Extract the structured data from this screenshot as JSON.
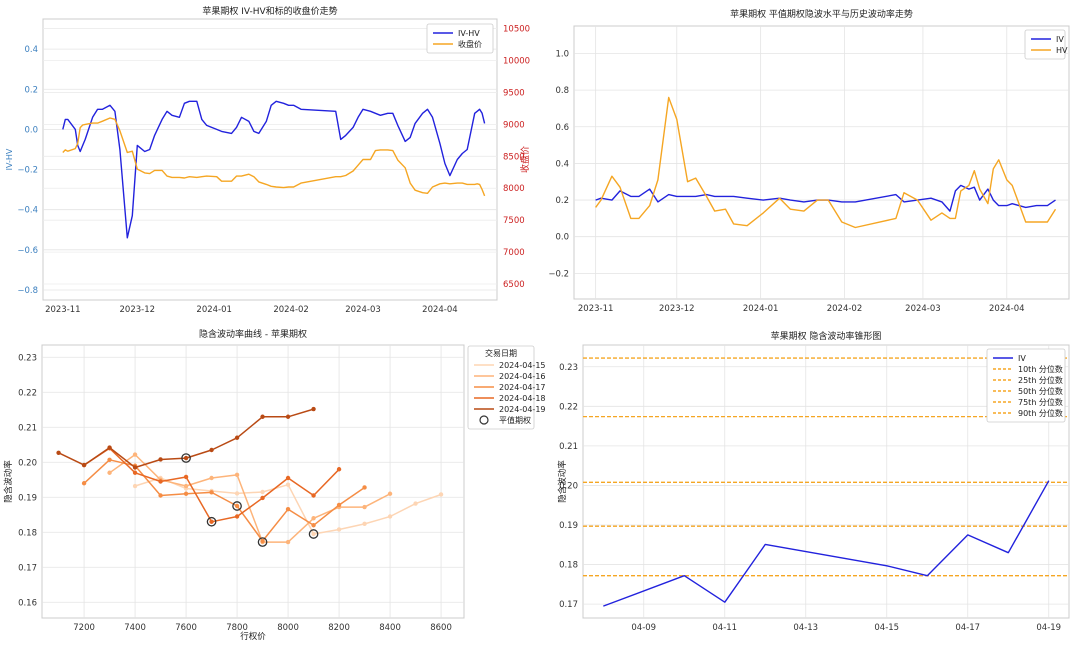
{
  "chart_data": [
    {
      "type": "line",
      "title": "苹果期权 IV-HV和标的收盘价走势",
      "ylabel": "IV-HV",
      "y2label": "收盘价",
      "ylim": [
        -0.85,
        0.55
      ],
      "y2lim": [
        6250,
        10650
      ],
      "yticks": [
        -0.8,
        -0.6,
        -0.4,
        -0.2,
        0.0,
        0.2,
        0.4
      ],
      "ytick_labels": [
        "−0.8",
        "−0.6",
        "−0.4",
        "−0.2",
        "0.0",
        "0.2",
        "0.4"
      ],
      "y2ticks": [
        6500,
        7000,
        7500,
        8000,
        8500,
        9000,
        9500,
        10000,
        10500
      ],
      "y2tick_labels": [
        "6500",
        "7000",
        "7500",
        "8000",
        "8500",
        "9000",
        "9500",
        "10000",
        "10500"
      ],
      "xlim": [
        "2023-10-24",
        "2024-04-24"
      ],
      "xticks": [
        "2023-11-01",
        "2023-12-01",
        "2024-01-01",
        "2024-02-01",
        "2024-03-01",
        "2024-04-01"
      ],
      "xtick_labels": [
        "2023-11",
        "2023-12",
        "2024-01",
        "2024-02",
        "2024-03",
        "2024-04"
      ],
      "legend": "top-right",
      "grid": true,
      "series": [
        {
          "name": "IV-HV",
          "color": "#2222dd",
          "axis": "left",
          "x": [
            "2023-11-01",
            "2023-11-02",
            "2023-11-03",
            "2023-11-06",
            "2023-11-07",
            "2023-11-08",
            "2023-11-09",
            "2023-11-10",
            "2023-11-13",
            "2023-11-15",
            "2023-11-17",
            "2023-11-20",
            "2023-11-22",
            "2023-11-24",
            "2023-11-27",
            "2023-11-29",
            "2023-12-01",
            "2023-12-04",
            "2023-12-06",
            "2023-12-08",
            "2023-12-11",
            "2023-12-13",
            "2023-12-15",
            "2023-12-18",
            "2023-12-20",
            "2023-12-22",
            "2023-12-25",
            "2023-12-27",
            "2023-12-29",
            "2024-01-02",
            "2024-01-04",
            "2024-01-08",
            "2024-01-10",
            "2024-01-12",
            "2024-01-15",
            "2024-01-17",
            "2024-01-19",
            "2024-01-22",
            "2024-01-24",
            "2024-01-26",
            "2024-01-29",
            "2024-01-31",
            "2024-02-02",
            "2024-02-05",
            "2024-02-19",
            "2024-02-21",
            "2024-02-23",
            "2024-02-26",
            "2024-02-28",
            "2024-03-01",
            "2024-03-04",
            "2024-03-06",
            "2024-03-08",
            "2024-03-11",
            "2024-03-13",
            "2024-03-15",
            "2024-03-18",
            "2024-03-20",
            "2024-03-22",
            "2024-03-25",
            "2024-03-27",
            "2024-03-29",
            "2024-04-01",
            "2024-04-03",
            "2024-04-05",
            "2024-04-08",
            "2024-04-10",
            "2024-04-12",
            "2024-04-15",
            "2024-04-16",
            "2024-04-17",
            "2024-04-18",
            "2024-04-19"
          ],
          "y": [
            0.0,
            0.05,
            0.05,
            0.0,
            -0.08,
            -0.11,
            -0.08,
            -0.05,
            0.06,
            0.1,
            0.1,
            0.12,
            0.09,
            -0.1,
            -0.54,
            -0.43,
            -0.08,
            -0.11,
            -0.1,
            -0.03,
            0.05,
            0.09,
            0.07,
            0.06,
            0.13,
            0.14,
            0.14,
            0.05,
            0.02,
            0.0,
            -0.01,
            -0.02,
            0.01,
            0.06,
            0.04,
            -0.01,
            -0.02,
            0.04,
            0.12,
            0.14,
            0.13,
            0.12,
            0.12,
            0.1,
            0.09,
            -0.05,
            -0.03,
            0.01,
            0.06,
            0.1,
            0.09,
            0.08,
            0.07,
            0.08,
            0.08,
            0.02,
            -0.06,
            -0.04,
            0.03,
            0.08,
            0.1,
            0.06,
            -0.07,
            -0.17,
            -0.23,
            -0.15,
            -0.12,
            -0.1,
            0.08,
            0.09,
            0.1,
            0.08,
            0.03
          ]
        },
        {
          "name": "收盘价",
          "color": "#f5a623",
          "axis": "right",
          "x": [
            "2023-11-01",
            "2023-11-02",
            "2023-11-03",
            "2023-11-06",
            "2023-11-07",
            "2023-11-08",
            "2023-11-09",
            "2023-11-10",
            "2023-11-13",
            "2023-11-15",
            "2023-11-17",
            "2023-11-20",
            "2023-11-22",
            "2023-11-24",
            "2023-11-27",
            "2023-11-29",
            "2023-12-01",
            "2023-12-04",
            "2023-12-06",
            "2023-12-08",
            "2023-12-11",
            "2023-12-13",
            "2023-12-15",
            "2023-12-18",
            "2023-12-20",
            "2023-12-22",
            "2023-12-25",
            "2023-12-27",
            "2023-12-29",
            "2024-01-02",
            "2024-01-04",
            "2024-01-08",
            "2024-01-10",
            "2024-01-12",
            "2024-01-15",
            "2024-01-17",
            "2024-01-19",
            "2024-01-22",
            "2024-01-24",
            "2024-01-26",
            "2024-01-29",
            "2024-01-31",
            "2024-02-02",
            "2024-02-05",
            "2024-02-19",
            "2024-02-21",
            "2024-02-23",
            "2024-02-26",
            "2024-02-28",
            "2024-03-01",
            "2024-03-04",
            "2024-03-06",
            "2024-03-08",
            "2024-03-11",
            "2024-03-13",
            "2024-03-15",
            "2024-03-18",
            "2024-03-20",
            "2024-03-22",
            "2024-03-25",
            "2024-03-27",
            "2024-03-29",
            "2024-04-01",
            "2024-04-03",
            "2024-04-05",
            "2024-04-08",
            "2024-04-10",
            "2024-04-12",
            "2024-04-15",
            "2024-04-16",
            "2024-04-17",
            "2024-04-18",
            "2024-04-19"
          ],
          "y": [
            8560,
            8600,
            8580,
            8620,
            8700,
            8950,
            8990,
            9000,
            9020,
            9020,
            9050,
            9100,
            9080,
            8900,
            8560,
            8580,
            8300,
            8240,
            8230,
            8280,
            8280,
            8190,
            8170,
            8170,
            8160,
            8180,
            8170,
            8180,
            8190,
            8180,
            8110,
            8110,
            8190,
            8190,
            8220,
            8180,
            8100,
            8060,
            8030,
            8020,
            8010,
            8020,
            8020,
            8080,
            8180,
            8180,
            8200,
            8270,
            8360,
            8450,
            8450,
            8590,
            8600,
            8600,
            8590,
            8440,
            8320,
            8080,
            7970,
            7930,
            7920,
            8020,
            8070,
            8080,
            8070,
            8080,
            8080,
            8060,
            8060,
            8070,
            8060,
            7980,
            7880
          ]
        }
      ]
    },
    {
      "type": "line",
      "title": "苹果期权 平值期权隐波水平与历史波动率走势",
      "ylim": [
        -0.34,
        1.15
      ],
      "yticks": [
        -0.2,
        0.0,
        0.2,
        0.4,
        0.6,
        0.8,
        1.0
      ],
      "ytick_labels": [
        "−0.2",
        "0.0",
        "0.2",
        "0.4",
        "0.6",
        "0.8",
        "1.0"
      ],
      "xlim": [
        "2023-10-24",
        "2024-04-24"
      ],
      "xticks": [
        "2023-11-01",
        "2023-12-01",
        "2024-01-01",
        "2024-02-01",
        "2024-03-01",
        "2024-04-01"
      ],
      "xtick_labels": [
        "2023-11",
        "2023-12",
        "2024-01",
        "2024-02",
        "2024-03",
        "2024-04"
      ],
      "legend": "top-right",
      "grid": true,
      "series": [
        {
          "name": "IV",
          "color": "#2222dd",
          "x": [
            "2023-11-01",
            "2023-11-03",
            "2023-11-07",
            "2023-11-10",
            "2023-11-14",
            "2023-11-17",
            "2023-11-21",
            "2023-11-24",
            "2023-11-28",
            "2023-12-01",
            "2023-12-05",
            "2023-12-08",
            "2023-12-12",
            "2023-12-15",
            "2023-12-19",
            "2023-12-22",
            "2023-12-27",
            "2024-01-02",
            "2024-01-08",
            "2024-01-12",
            "2024-01-17",
            "2024-01-22",
            "2024-01-26",
            "2024-01-31",
            "2024-02-05",
            "2024-02-20",
            "2024-02-23",
            "2024-02-28",
            "2024-03-04",
            "2024-03-08",
            "2024-03-11",
            "2024-03-13",
            "2024-03-15",
            "2024-03-18",
            "2024-03-20",
            "2024-03-22",
            "2024-03-25",
            "2024-03-27",
            "2024-03-29",
            "2024-04-01",
            "2024-04-03",
            "2024-04-08",
            "2024-04-12",
            "2024-04-16",
            "2024-04-19"
          ],
          "y": [
            0.2,
            0.21,
            0.2,
            0.25,
            0.22,
            0.22,
            0.26,
            0.19,
            0.23,
            0.22,
            0.22,
            0.22,
            0.23,
            0.22,
            0.22,
            0.22,
            0.21,
            0.2,
            0.21,
            0.2,
            0.19,
            0.2,
            0.2,
            0.19,
            0.19,
            0.23,
            0.19,
            0.2,
            0.21,
            0.19,
            0.14,
            0.25,
            0.28,
            0.26,
            0.27,
            0.2,
            0.26,
            0.2,
            0.17,
            0.17,
            0.18,
            0.16,
            0.17,
            0.17,
            0.2
          ]
        },
        {
          "name": "HV",
          "color": "#f5a623",
          "x": [
            "2023-11-01",
            "2023-11-03",
            "2023-11-07",
            "2023-11-10",
            "2023-11-14",
            "2023-11-17",
            "2023-11-21",
            "2023-11-24",
            "2023-11-28",
            "2023-12-01",
            "2023-12-05",
            "2023-12-08",
            "2023-12-12",
            "2023-12-15",
            "2023-12-19",
            "2023-12-22",
            "2023-12-27",
            "2024-01-02",
            "2024-01-08",
            "2024-01-12",
            "2024-01-17",
            "2024-01-22",
            "2024-01-26",
            "2024-01-31",
            "2024-02-05",
            "2024-02-20",
            "2024-02-23",
            "2024-02-28",
            "2024-03-04",
            "2024-03-08",
            "2024-03-11",
            "2024-03-13",
            "2024-03-15",
            "2024-03-18",
            "2024-03-20",
            "2024-03-22",
            "2024-03-25",
            "2024-03-27",
            "2024-03-29",
            "2024-04-01",
            "2024-04-03",
            "2024-04-08",
            "2024-04-12",
            "2024-04-16",
            "2024-04-19"
          ],
          "y": [
            0.16,
            0.2,
            0.33,
            0.27,
            0.1,
            0.1,
            0.17,
            0.31,
            0.76,
            0.64,
            0.3,
            0.32,
            0.22,
            0.14,
            0.15,
            0.07,
            0.06,
            0.13,
            0.21,
            0.15,
            0.14,
            0.2,
            0.2,
            0.08,
            0.05,
            0.1,
            0.24,
            0.2,
            0.09,
            0.13,
            0.1,
            0.1,
            0.25,
            0.28,
            0.36,
            0.26,
            0.18,
            0.37,
            0.42,
            0.31,
            0.28,
            0.08,
            0.08,
            0.08,
            0.15
          ]
        }
      ]
    },
    {
      "type": "line",
      "title": "隐含波动率曲线 - 苹果期权",
      "xlabel": "行权价",
      "ylabel": "隐含波动率",
      "xlim": [
        7035,
        8690
      ],
      "ylim": [
        0.1555,
        0.2335
      ],
      "xticks": [
        7200,
        7400,
        7600,
        7800,
        8000,
        8200,
        8400,
        8600
      ],
      "xtick_labels": [
        "7200",
        "7400",
        "7600",
        "7800",
        "8000",
        "8200",
        "8400",
        "8600"
      ],
      "yticks": [
        0.16,
        0.17,
        0.18,
        0.19,
        0.2,
        0.21,
        0.22,
        0.23
      ],
      "ytick_labels": [
        "0.16",
        "0.17",
        "0.18",
        "0.19",
        "0.20",
        "0.21",
        "0.22",
        "0.23"
      ],
      "legend_title": "交易日期",
      "legend": "upper right outside",
      "atm_label": "平值期权",
      "grid": true,
      "series": [
        {
          "name": "2024-04-15",
          "color": "#fdd5b4",
          "x": [
            7400,
            7500,
            7600,
            7700,
            7800,
            7900,
            8000,
            8100,
            8200,
            8300,
            8400,
            8500,
            8600
          ],
          "y": [
            0.1932,
            0.1955,
            0.1925,
            0.1918,
            0.1911,
            0.1915,
            0.1936,
            0.1795,
            0.1808,
            0.1824,
            0.1845,
            0.1882,
            0.1908
          ],
          "atm": [
            8100,
            0.1795
          ]
        },
        {
          "name": "2024-04-16",
          "color": "#fdb47a",
          "x": [
            7300,
            7400,
            7500,
            7600,
            7700,
            7800,
            7900,
            8000,
            8100,
            8200,
            8300,
            8400
          ],
          "y": [
            0.197,
            0.2022,
            0.195,
            0.1932,
            0.1955,
            0.1964,
            0.1772,
            0.1772,
            0.184,
            0.1872,
            0.1872,
            0.191
          ],
          "atm": [
            7900,
            0.1772
          ]
        },
        {
          "name": "2024-04-17",
          "color": "#f58d45",
          "x": [
            7200,
            7300,
            7400,
            7500,
            7600,
            7700,
            7800,
            7900,
            8000,
            8100,
            8200,
            8300
          ],
          "y": [
            0.194,
            0.2007,
            0.199,
            0.1905,
            0.191,
            0.1914,
            0.1875,
            0.1775,
            0.1866,
            0.182,
            0.1878,
            0.1928
          ],
          "atm": [
            7800,
            0.1875
          ]
        },
        {
          "name": "2024-04-18",
          "color": "#e86824",
          "x": [
            7200,
            7300,
            7400,
            7500,
            7600,
            7700,
            7800,
            7900,
            8000,
            8100,
            8200
          ],
          "y": [
            0.1992,
            0.204,
            0.197,
            0.1945,
            0.1958,
            0.183,
            0.1845,
            0.1898,
            0.1955,
            0.1905,
            0.198
          ],
          "atm": [
            7700,
            0.183
          ]
        },
        {
          "name": "2024-04-19",
          "color": "#b94a14",
          "x": [
            7100,
            7200,
            7300,
            7400,
            7500,
            7600,
            7700,
            7800,
            7900,
            8000,
            8100
          ],
          "y": [
            0.2027,
            0.1992,
            0.2042,
            0.1985,
            0.2008,
            0.2012,
            0.2035,
            0.207,
            0.213,
            0.213,
            0.2152
          ],
          "atm": [
            7600,
            0.2012
          ]
        }
      ]
    },
    {
      "type": "line",
      "title": "苹果期权 隐含波动率锥形图",
      "ylabel": "隐含波动率",
      "ylim": [
        0.1665,
        0.2355
      ],
      "yticks": [
        0.17,
        0.18,
        0.19,
        0.2,
        0.21,
        0.22,
        0.23
      ],
      "ytick_labels": [
        "0.17",
        "0.18",
        "0.19",
        "0.20",
        "0.21",
        "0.22",
        "0.23"
      ],
      "xlim": [
        "2024-04-07T12:00",
        "2024-04-19T12:00"
      ],
      "xticks": [
        "2024-04-09",
        "2024-04-11",
        "2024-04-13",
        "2024-04-15",
        "2024-04-17",
        "2024-04-19"
      ],
      "xtick_labels": [
        "04-09",
        "04-11",
        "04-13",
        "04-15",
        "04-17",
        "04-19"
      ],
      "legend": "top-right",
      "grid": true,
      "series": [
        {
          "name": "IV",
          "color": "#2222dd",
          "x": [
            "2024-04-08",
            "2024-04-10",
            "2024-04-11",
            "2024-04-12",
            "2024-04-15",
            "2024-04-16",
            "2024-04-17",
            "2024-04-18",
            "2024-04-19"
          ],
          "y": [
            0.1695,
            0.1772,
            0.1705,
            0.1851,
            0.1797,
            0.1772,
            0.1875,
            0.183,
            0.2012
          ]
        }
      ],
      "quantiles": [
        {
          "name": "10th 分位数",
          "value": 0.1772,
          "color": "#f5a623"
        },
        {
          "name": "25th 分位数",
          "value": 0.1897,
          "color": "#f5a623"
        },
        {
          "name": "50th 分位数",
          "value": 0.2008,
          "color": "#f5a623"
        },
        {
          "name": "75th 分位数",
          "value": 0.2174,
          "color": "#f5a623"
        },
        {
          "name": "90th 分位数",
          "value": 0.2322,
          "color": "#f5a623"
        }
      ]
    }
  ]
}
